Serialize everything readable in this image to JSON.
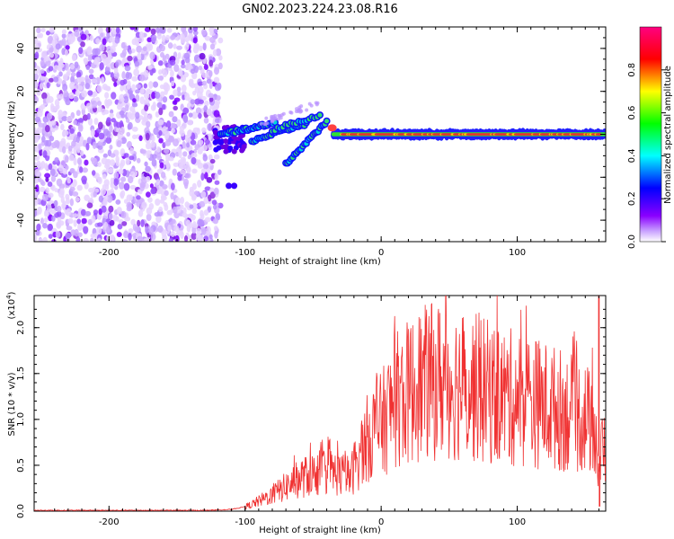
{
  "title": "GN02.2023.224.23.08.R16",
  "chart_data": [
    {
      "type": "heatmap",
      "title": "GN02.2023.224.23.08.R16",
      "xlabel": "Height of straight line (km)",
      "ylabel": "Frequency (Hz)",
      "xlim": [
        -255,
        165
      ],
      "ylim": [
        -50,
        50
      ],
      "xticks": [
        -200,
        -100,
        0,
        100
      ],
      "yticks": [
        -40,
        -20,
        0,
        20,
        40
      ],
      "colorbar": {
        "label": "Normalized spectral amplitude",
        "range": [
          0,
          1
        ],
        "ticks": [
          0.0,
          0.2,
          0.4,
          0.6,
          0.8
        ],
        "tick_labels": [
          "0.0",
          "0.2",
          "0.4",
          "0.6",
          "0.8"
        ],
        "colors": [
          "#ffffff",
          "#8a00ff",
          "#0000ff",
          "#00ffff",
          "#00ff00",
          "#ffff00",
          "#ff0000",
          "#ff0080"
        ]
      },
      "regions": [
        {
          "name": "noise",
          "x_range": [
            -255,
            -118
          ],
          "freq_range": [
            -50,
            50
          ],
          "amplitude": "low (purple)"
        },
        {
          "name": "onset",
          "x_range": [
            -120,
            -100
          ],
          "freq_range": [
            -8,
            4
          ],
          "amplitude": "low-mid"
        },
        {
          "name": "rising-branches",
          "x_range": [
            -100,
            -38
          ],
          "freq_range": [
            -14,
            10
          ],
          "amplitude": "mid (blue-green)"
        },
        {
          "name": "signal-line",
          "x_range": [
            -35,
            165
          ],
          "freq_center": 0,
          "amplitude": "high (red)"
        }
      ]
    },
    {
      "type": "line",
      "xlabel": "Height of straight line (km)",
      "ylabel": "SNR (10 * v/v)",
      "y_scale_label": "(x10",
      "y_scale_exp": "4",
      "y_scale_close": ")",
      "xlim": [
        -255,
        165
      ],
      "ylim": [
        0,
        2.35
      ],
      "xticks": [
        -200,
        -100,
        0,
        100
      ],
      "yticks": [
        0.0,
        0.5,
        1.0,
        1.5,
        2.0
      ],
      "ytick_labels": [
        "0.0",
        "0.5",
        "1.0",
        "1.5",
        "2.0"
      ],
      "color": "#f03232",
      "x": [
        -255,
        -130,
        -110,
        -100,
        -90,
        -80,
        -70,
        -60,
        -50,
        -40,
        -30,
        -22,
        -20,
        -15,
        -10,
        -5,
        0,
        5,
        10,
        20,
        30,
        40,
        50,
        60,
        70,
        80,
        90,
        100,
        110,
        120,
        130,
        140,
        150,
        155,
        158,
        160,
        162,
        165
      ],
      "values": [
        0.01,
        0.01,
        0.02,
        0.05,
        0.12,
        0.2,
        0.3,
        0.4,
        0.45,
        0.5,
        0.45,
        0.42,
        0.55,
        0.7,
        0.9,
        1.0,
        1.05,
        1.2,
        1.35,
        1.45,
        1.55,
        1.6,
        1.58,
        1.55,
        1.5,
        1.45,
        1.4,
        1.38,
        1.35,
        1.3,
        1.25,
        1.2,
        1.15,
        1.05,
        0.9,
        0.3,
        0.8,
        0.85
      ],
      "spikes": [
        {
          "x": 160,
          "value": 2.35
        },
        {
          "x": 160.5,
          "value": 0.05
        }
      ]
    }
  ]
}
